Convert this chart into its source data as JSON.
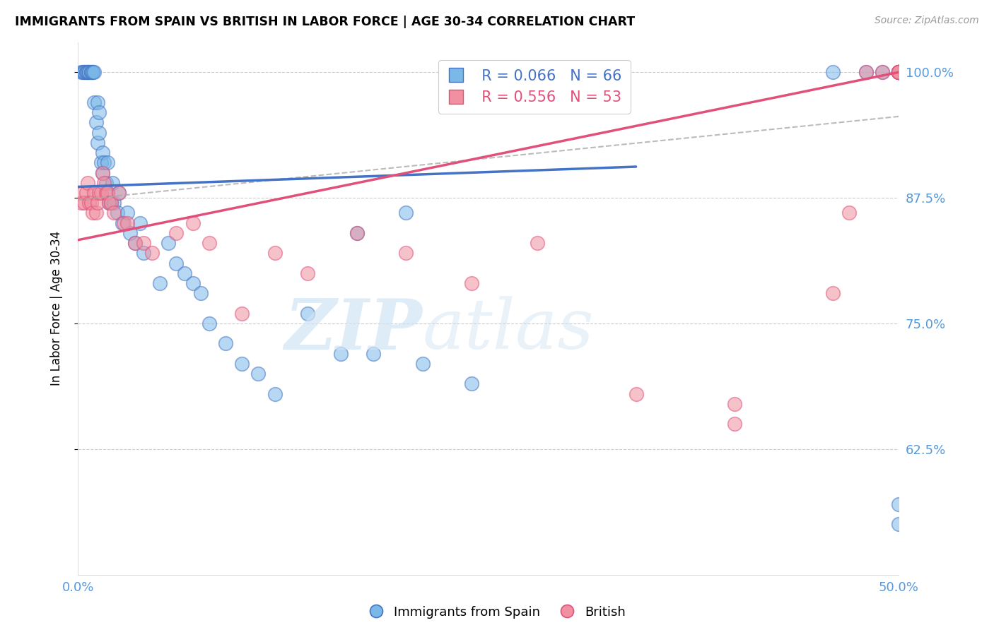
{
  "title": "IMMIGRANTS FROM SPAIN VS BRITISH IN LABOR FORCE | AGE 30-34 CORRELATION CHART",
  "source": "Source: ZipAtlas.com",
  "ylabel": "In Labor Force | Age 30-34",
  "xlim": [
    0.0,
    0.5
  ],
  "ylim": [
    0.5,
    1.03
  ],
  "yticks": [
    0.625,
    0.75,
    0.875,
    1.0
  ],
  "ytick_labels": [
    "62.5%",
    "75.0%",
    "87.5%",
    "100.0%"
  ],
  "xticks": [
    0.0,
    0.0625,
    0.125,
    0.1875,
    0.25,
    0.3125,
    0.375,
    0.4375,
    0.5
  ],
  "xtick_labels": [
    "0.0%",
    "",
    "",
    "",
    "",
    "",
    "",
    "",
    "50.0%"
  ],
  "blue_R": 0.066,
  "blue_N": 66,
  "pink_R": 0.556,
  "pink_N": 53,
  "blue_color": "#7ab8e8",
  "pink_color": "#f090a0",
  "blue_line_color": "#4472c4",
  "pink_line_color": "#e0507a",
  "axis_color": "#5599dd",
  "grid_color": "#cccccc",
  "blue_line_x0": 0.0,
  "blue_line_y0": 0.886,
  "blue_line_x1": 0.34,
  "blue_line_y1": 0.906,
  "pink_line_x0": 0.0,
  "pink_line_y0": 0.833,
  "pink_line_x1": 0.5,
  "pink_line_y1": 1.0,
  "dash_line_x0": 0.0,
  "dash_line_y0": 0.873,
  "dash_line_x1": 0.5,
  "dash_line_y1": 0.956,
  "blue_x": [
    0.002,
    0.003,
    0.004,
    0.004,
    0.005,
    0.005,
    0.006,
    0.006,
    0.007,
    0.007,
    0.008,
    0.008,
    0.009,
    0.009,
    0.01,
    0.01,
    0.011,
    0.012,
    0.012,
    0.013,
    0.013,
    0.014,
    0.015,
    0.015,
    0.016,
    0.017,
    0.018,
    0.018,
    0.019,
    0.02,
    0.021,
    0.022,
    0.024,
    0.025,
    0.027,
    0.03,
    0.032,
    0.035,
    0.038,
    0.04,
    0.05,
    0.055,
    0.06,
    0.065,
    0.07,
    0.075,
    0.08,
    0.09,
    0.1,
    0.11,
    0.12,
    0.14,
    0.16,
    0.18,
    0.21,
    0.24,
    0.17,
    0.2,
    0.46,
    0.48,
    0.49,
    0.5,
    0.5,
    0.5,
    0.5,
    0.5
  ],
  "blue_y": [
    1.0,
    1.0,
    1.0,
    1.0,
    1.0,
    1.0,
    1.0,
    1.0,
    1.0,
    1.0,
    1.0,
    1.0,
    1.0,
    1.0,
    1.0,
    0.97,
    0.95,
    0.97,
    0.93,
    0.96,
    0.94,
    0.91,
    0.92,
    0.9,
    0.91,
    0.89,
    0.91,
    0.88,
    0.87,
    0.87,
    0.89,
    0.87,
    0.86,
    0.88,
    0.85,
    0.86,
    0.84,
    0.83,
    0.85,
    0.82,
    0.79,
    0.83,
    0.81,
    0.8,
    0.79,
    0.78,
    0.75,
    0.73,
    0.71,
    0.7,
    0.68,
    0.76,
    0.72,
    0.72,
    0.71,
    0.69,
    0.84,
    0.86,
    1.0,
    1.0,
    1.0,
    1.0,
    1.0,
    1.0,
    0.57,
    0.55
  ],
  "pink_x": [
    0.002,
    0.003,
    0.004,
    0.005,
    0.006,
    0.007,
    0.008,
    0.009,
    0.01,
    0.011,
    0.012,
    0.013,
    0.014,
    0.015,
    0.016,
    0.017,
    0.018,
    0.019,
    0.02,
    0.022,
    0.025,
    0.028,
    0.03,
    0.035,
    0.04,
    0.045,
    0.06,
    0.07,
    0.08,
    0.1,
    0.12,
    0.14,
    0.17,
    0.2,
    0.24,
    0.28,
    0.34,
    0.4,
    0.4,
    0.46,
    0.47,
    0.48,
    0.49,
    0.5,
    0.5,
    0.5,
    0.5,
    0.5,
    0.5,
    0.5,
    0.5,
    0.5,
    0.5
  ],
  "pink_y": [
    0.87,
    0.88,
    0.87,
    0.88,
    0.89,
    0.87,
    0.87,
    0.86,
    0.88,
    0.86,
    0.87,
    0.88,
    0.88,
    0.9,
    0.89,
    0.88,
    0.88,
    0.87,
    0.87,
    0.86,
    0.88,
    0.85,
    0.85,
    0.83,
    0.83,
    0.82,
    0.84,
    0.85,
    0.83,
    0.76,
    0.82,
    0.8,
    0.84,
    0.82,
    0.79,
    0.83,
    0.68,
    0.67,
    0.65,
    0.78,
    0.86,
    1.0,
    1.0,
    1.0,
    1.0,
    1.0,
    1.0,
    1.0,
    1.0,
    1.0,
    1.0,
    1.0,
    1.0
  ]
}
